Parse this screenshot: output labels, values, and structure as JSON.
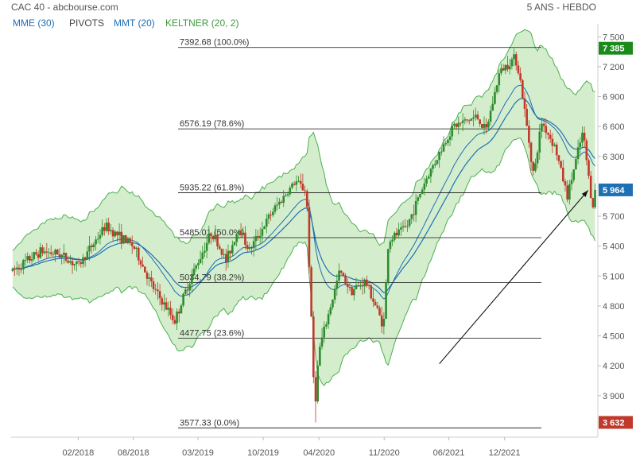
{
  "header": {
    "title": "CAC 40 - abcbourse.com",
    "period": "5 ANS - HEBDO",
    "indicators": [
      {
        "label": "MME (30)",
        "color": "#1f6fb5"
      },
      {
        "label": "PIVOTS",
        "color": "#444444"
      },
      {
        "label": "MMT (20)",
        "color": "#1f6fb5"
      },
      {
        "label": "KELTNER (20, 2)",
        "color": "#3a9a3a"
      }
    ]
  },
  "colors": {
    "up": "#2e8b2e",
    "down": "#c0392b",
    "band_fill": "#cdebc4",
    "band_stroke": "#4caf50",
    "ma": "#1f6fb5",
    "badge_last": "#1f6fb5",
    "badge_high": "#1a8a1a",
    "badge_low": "#c0392b"
  },
  "chart_data": {
    "type": "candlestick",
    "ylim": [
      3500,
      7550
    ],
    "y_ticks": [
      3900,
      4200,
      4500,
      4800,
      5100,
      5400,
      5700,
      6000,
      6300,
      6600,
      6900,
      7200,
      7500
    ],
    "y_tick_labels": [
      "3 900",
      "4 200",
      "4 500",
      "4 800",
      "5 100",
      "5 400",
      "5 700",
      "6 000",
      "6 300",
      "6 600",
      "6 900",
      "7 200",
      "7 500"
    ],
    "x_ticks": [
      {
        "date": "2018-02-01",
        "label": "02/2018"
      },
      {
        "date": "2018-08-01",
        "label": "08/2018"
      },
      {
        "date": "2019-03-01",
        "label": "03/2019"
      },
      {
        "date": "2019-10-01",
        "label": "10/2019"
      },
      {
        "date": "2020-04-01",
        "label": "04/2020"
      },
      {
        "date": "2020-11-01",
        "label": "11/2020"
      },
      {
        "date": "2021-06-01",
        "label": "06/2021"
      },
      {
        "date": "2021-12-01",
        "label": "12/2021"
      }
    ],
    "fib_levels": [
      {
        "value": 7392.68,
        "label": "7392.68  (100.0%)"
      },
      {
        "value": 6576.19,
        "label": "6576.19  (78.6%)"
      },
      {
        "value": 5935.22,
        "label": "5935.22  (61.8%)"
      },
      {
        "value": 5485.01,
        "label": "5485.01  (50.0%)"
      },
      {
        "value": 5034.79,
        "label": "5034.79  (38.2%)"
      },
      {
        "value": 4477.75,
        "label": "4477.75  (23.6%)"
      },
      {
        "value": 3577.33,
        "label": "3577.33  (0.0%)"
      }
    ],
    "badges": [
      {
        "value": 7385,
        "label": "7 385",
        "kind": "high"
      },
      {
        "value": 5964,
        "label": "5 964",
        "kind": "last"
      },
      {
        "value": 3632,
        "label": "3 632",
        "kind": "low"
      }
    ],
    "anchors": [
      {
        "date": "2017-07-01",
        "close": 5150
      },
      {
        "date": "2017-10-01",
        "close": 5350
      },
      {
        "date": "2017-12-01",
        "close": 5320
      },
      {
        "date": "2018-02-01",
        "close": 5200
      },
      {
        "date": "2018-05-01",
        "close": 5600
      },
      {
        "date": "2018-08-01",
        "close": 5400
      },
      {
        "date": "2018-10-01",
        "close": 5000
      },
      {
        "date": "2018-12-15",
        "close": 4650
      },
      {
        "date": "2019-02-01",
        "close": 5050
      },
      {
        "date": "2019-04-15",
        "close": 5550
      },
      {
        "date": "2019-06-01",
        "close": 5250
      },
      {
        "date": "2019-07-15",
        "close": 5600
      },
      {
        "date": "2019-08-15",
        "close": 5350
      },
      {
        "date": "2019-11-01",
        "close": 5750
      },
      {
        "date": "2020-01-15",
        "close": 6050
      },
      {
        "date": "2020-02-20",
        "close": 5950
      },
      {
        "date": "2020-03-18",
        "close": 3760
      },
      {
        "date": "2020-04-01",
        "close": 4350
      },
      {
        "date": "2020-06-08",
        "close": 5150
      },
      {
        "date": "2020-07-15",
        "close": 4950
      },
      {
        "date": "2020-09-01",
        "close": 5050
      },
      {
        "date": "2020-10-30",
        "close": 4600
      },
      {
        "date": "2020-11-15",
        "close": 5450
      },
      {
        "date": "2021-01-15",
        "close": 5600
      },
      {
        "date": "2021-03-15",
        "close": 6050
      },
      {
        "date": "2021-06-15",
        "close": 6600
      },
      {
        "date": "2021-09-01",
        "close": 6700
      },
      {
        "date": "2021-10-01",
        "close": 6550
      },
      {
        "date": "2021-11-15",
        "close": 7150
      },
      {
        "date": "2022-01-05",
        "close": 7300
      },
      {
        "date": "2022-01-20",
        "close": 7100
      },
      {
        "date": "2022-03-07",
        "close": 6100
      },
      {
        "date": "2022-04-01",
        "close": 6650
      },
      {
        "date": "2022-05-15",
        "close": 6400
      },
      {
        "date": "2022-06-25",
        "close": 5900
      },
      {
        "date": "2022-08-15",
        "close": 6550
      },
      {
        "date": "2022-09-15",
        "close": 5800
      },
      {
        "date": "2022-09-30",
        "close": 5964
      }
    ],
    "arrow": {
      "from": {
        "date": "2021-05-01",
        "value": 4220
      },
      "to": {
        "date": "2022-09-01",
        "value": 5960
      }
    }
  }
}
